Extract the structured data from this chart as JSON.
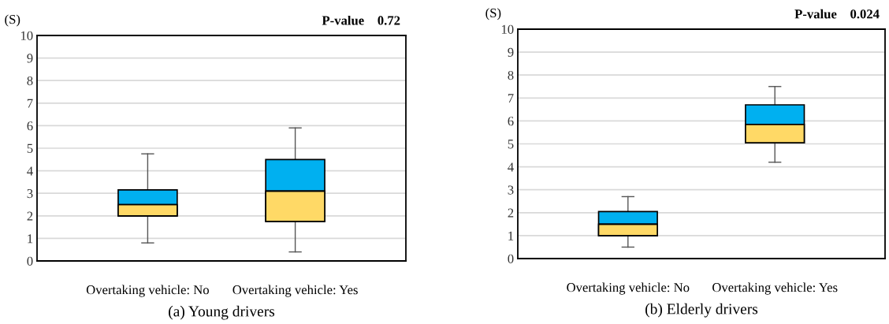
{
  "chart_data": [
    {
      "type": "box",
      "xlabel": "(a) Young drivers",
      "ylabel": "(S)",
      "categories": [
        "Overtaking vehicle: No",
        "Overtaking vehicle: Yes"
      ],
      "series": [
        {
          "color": "#ffd966",
          "colors": [
            "#00b0f0",
            "#00b0f0"
          ],
          "boxes": [
            {
              "low": 0.8,
              "q1": 2.0,
              "median": 2.5,
              "q3": 3.15,
              "high": 4.75
            },
            {
              "low": 0.4,
              "q1": 1.75,
              "median": 3.1,
              "q3": 4.5,
              "high": 5.9
            }
          ]
        }
      ],
      "ylim": [
        0,
        10
      ],
      "yticks": [
        0,
        1,
        2,
        3,
        4,
        5,
        6,
        7,
        8,
        9,
        10
      ],
      "grid": "y",
      "annotations": [
        "P-value    0.72"
      ]
    },
    {
      "type": "box",
      "xlabel": "(b) Elderly drivers",
      "ylabel": "(S)",
      "categories": [
        "Overtaking vehicle: No",
        "Overtaking vehicle: Yes"
      ],
      "series": [
        {
          "color": "#ffd966",
          "colors": [
            "#00b0f0",
            "#00b0f0"
          ],
          "boxes": [
            {
              "low": 0.5,
              "q1": 1.0,
              "median": 1.5,
              "q3": 2.05,
              "high": 2.7
            },
            {
              "low": 4.2,
              "q1": 5.05,
              "median": 5.85,
              "q3": 6.7,
              "high": 7.5
            }
          ]
        }
      ],
      "ylim": [
        0,
        10
      ],
      "yticks": [
        0,
        1,
        2,
        3,
        4,
        5,
        6,
        7,
        8,
        9,
        10
      ],
      "grid": "y",
      "annotations": [
        "P-value    0.024"
      ]
    }
  ]
}
